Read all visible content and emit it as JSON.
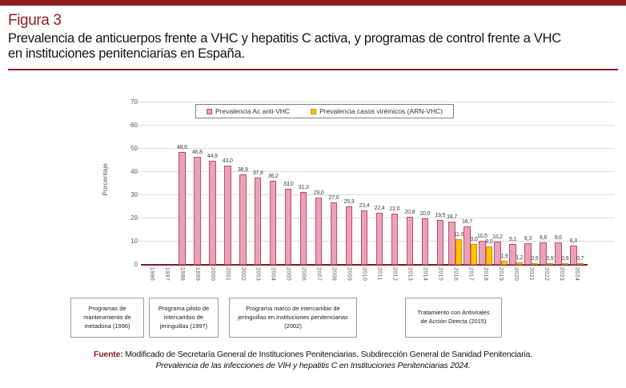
{
  "header": {
    "figure_label": "Figura 3",
    "title_line1": "Prevalencia de anticuerpos frente a VHC y hepatitis C activa, y programas de control frente a VHC",
    "title_line2": "en instituciones penitenciarias en España."
  },
  "colors": {
    "accent_dark_red": "#8e1b1e",
    "axis_baseline": "#7c1a27",
    "pink_fill": "#e9a3b5",
    "pink_border": "#c04a70",
    "yellow_fill": "#ffc103",
    "yellow_border": "#c98f00",
    "gridline": "#dcdcdc",
    "tick_text": "#595959"
  },
  "chart_data": {
    "type": "bar",
    "title": "",
    "xlabel": "",
    "ylabel": "Porcentaje",
    "ylim": [
      0,
      70
    ],
    "yticks": [
      0,
      10,
      20,
      30,
      40,
      50,
      60,
      70
    ],
    "grid": true,
    "legend_position": "top-center",
    "categories": [
      "1996",
      "1997",
      "1998",
      "1999",
      "2000",
      "2001",
      "2002",
      "2003",
      "2004",
      "2005",
      "2006",
      "2007",
      "2008",
      "2009",
      "2010",
      "2011",
      "2012",
      "2013",
      "2014",
      "2015",
      "2016",
      "2017",
      "2018",
      "2019",
      "2020",
      "2021",
      "2022",
      "2023",
      "2024"
    ],
    "series": [
      {
        "name": "Prevalencia Ac anti-VHC",
        "color": "#e9a3b5",
        "border_color": "#c04a70",
        "values": [
          null,
          null,
          48.6,
          46.8,
          44.9,
          43.0,
          38.9,
          37.8,
          36.2,
          33.0,
          31.3,
          29.0,
          27.0,
          25.3,
          23.4,
          22.4,
          22.0,
          20.8,
          20.0,
          19.5,
          18.7,
          16.7,
          10.5,
          10.2,
          9.1,
          9.3,
          9.8,
          9.6,
          8.3
        ]
      },
      {
        "name": "Prevalencia casos virémicos (ARN-VHC)",
        "color": "#ffc103",
        "border_color": "#c98f00",
        "values": [
          null,
          null,
          null,
          null,
          null,
          null,
          null,
          null,
          null,
          null,
          null,
          null,
          null,
          null,
          null,
          null,
          null,
          null,
          null,
          null,
          11.0,
          9.0,
          8.0,
          1.9,
          1.2,
          0.9,
          0.9,
          0.9,
          0.7
        ]
      }
    ]
  },
  "annotations": [
    {
      "text": "Programas de mantenimiento de metadona (1996)"
    },
    {
      "text": "Programa piloto de intercambio de jeringuillas (1997)"
    },
    {
      "text": "Programa marco de intercambio de jeringuillas en instituciones penitenciarias (2002)"
    },
    {
      "text": "Tratamiento con Antivirales de Acción Directa (2015)"
    }
  ],
  "source": {
    "label": "Fuente:",
    "line1": "Modificado de Secretaría General de Instituciones Penitenciarias. Subdirección General de Sanidad Penitenciaria.",
    "line2": "Prevalencia de las infecciones de VIH y hepatitis C en Instituciones Penitenciarias 2024."
  }
}
